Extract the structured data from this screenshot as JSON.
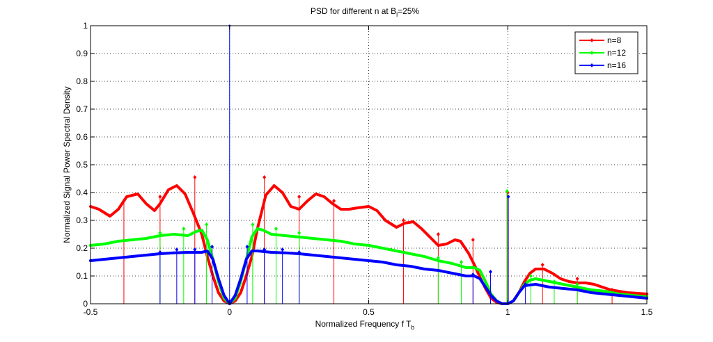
{
  "chart_data": {
    "type": "line",
    "title_main": "PSD for different n at B",
    "title_sub": "l",
    "title_end": "=25%",
    "xlabel_main": "Normalized Frequency f T",
    "xlabel_sub": "b",
    "ylabel": "Normalized Signal Power Spectral Density",
    "xlim": [
      -0.5,
      1.5
    ],
    "ylim": [
      0,
      1
    ],
    "xticks": [
      "-0.5",
      "0",
      "0.5",
      "1",
      "1.5"
    ],
    "yticks": [
      "0",
      "0.1",
      "0.2",
      "0.3",
      "0.4",
      "0.5",
      "0.6",
      "0.7",
      "0.8",
      "0.9",
      "1"
    ],
    "grid": true,
    "legend_position": "top-right",
    "series": [
      {
        "name": "n=8",
        "color": "#ff0000",
        "x": [
          -0.5,
          -0.47,
          -0.43,
          -0.4,
          -0.37,
          -0.33,
          -0.3,
          -0.27,
          -0.25,
          -0.22,
          -0.19,
          -0.16,
          -0.13,
          -0.1,
          -0.08,
          -0.06,
          -0.04,
          -0.02,
          0,
          0.02,
          0.04,
          0.06,
          0.08,
          0.1,
          0.13,
          0.16,
          0.19,
          0.22,
          0.25,
          0.28,
          0.31,
          0.34,
          0.37,
          0.4,
          0.43,
          0.46,
          0.5,
          0.53,
          0.56,
          0.6,
          0.63,
          0.66,
          0.69,
          0.72,
          0.75,
          0.78,
          0.81,
          0.83,
          0.86,
          0.88,
          0.9,
          0.92,
          0.94,
          0.96,
          0.98,
          1,
          1.02,
          1.04,
          1.06,
          1.08,
          1.1,
          1.13,
          1.16,
          1.19,
          1.22,
          1.25,
          1.28,
          1.31,
          1.34,
          1.37,
          1.4,
          1.43,
          1.46,
          1.5
        ],
        "y": [
          0.35,
          0.34,
          0.315,
          0.34,
          0.385,
          0.395,
          0.36,
          0.335,
          0.36,
          0.41,
          0.425,
          0.395,
          0.325,
          0.25,
          0.17,
          0.1,
          0.04,
          0.01,
          0,
          0.01,
          0.04,
          0.1,
          0.17,
          0.27,
          0.39,
          0.425,
          0.4,
          0.35,
          0.34,
          0.37,
          0.395,
          0.385,
          0.36,
          0.34,
          0.34,
          0.345,
          0.35,
          0.335,
          0.3,
          0.275,
          0.29,
          0.295,
          0.27,
          0.24,
          0.21,
          0.215,
          0.23,
          0.225,
          0.18,
          0.14,
          0.095,
          0.055,
          0.02,
          0.005,
          0,
          0,
          0.01,
          0.04,
          0.08,
          0.11,
          0.125,
          0.125,
          0.11,
          0.09,
          0.08,
          0.075,
          0.075,
          0.07,
          0.06,
          0.05,
          0.045,
          0.04,
          0.038,
          0.035
        ],
        "markers": [
          [
            -0.38,
            0.37
          ],
          [
            -0.25,
            0.385
          ],
          [
            -0.125,
            0.455
          ],
          [
            0.125,
            0.455
          ],
          [
            0.25,
            0.385
          ],
          [
            0.375,
            0.37
          ],
          [
            0.625,
            0.3
          ],
          [
            0.75,
            0.25
          ],
          [
            0.875,
            0.23
          ],
          [
            1.0,
            0.4
          ],
          [
            1.125,
            0.14
          ],
          [
            1.25,
            0.09
          ],
          [
            1.375,
            0.05
          ],
          [
            1.5,
            0.035
          ]
        ]
      },
      {
        "name": "n=12",
        "color": "#00ff00",
        "x": [
          -0.5,
          -0.45,
          -0.4,
          -0.35,
          -0.3,
          -0.25,
          -0.2,
          -0.15,
          -0.12,
          -0.1,
          -0.08,
          -0.06,
          -0.04,
          -0.02,
          0,
          0.02,
          0.04,
          0.06,
          0.08,
          0.1,
          0.12,
          0.15,
          0.2,
          0.25,
          0.3,
          0.35,
          0.4,
          0.45,
          0.5,
          0.55,
          0.6,
          0.65,
          0.7,
          0.75,
          0.8,
          0.85,
          0.88,
          0.9,
          0.92,
          0.94,
          0.96,
          0.98,
          1,
          1.02,
          1.04,
          1.06,
          1.08,
          1.1,
          1.15,
          1.2,
          1.25,
          1.3,
          1.35,
          1.4,
          1.45,
          1.5
        ],
        "y": [
          0.21,
          0.215,
          0.225,
          0.23,
          0.235,
          0.245,
          0.25,
          0.245,
          0.26,
          0.265,
          0.23,
          0.16,
          0.08,
          0.02,
          0,
          0.02,
          0.08,
          0.16,
          0.24,
          0.27,
          0.265,
          0.25,
          0.245,
          0.24,
          0.235,
          0.23,
          0.225,
          0.215,
          0.21,
          0.2,
          0.19,
          0.18,
          0.17,
          0.155,
          0.145,
          0.13,
          0.13,
          0.12,
          0.08,
          0.035,
          0.01,
          0,
          0,
          0.01,
          0.04,
          0.07,
          0.085,
          0.09,
          0.08,
          0.07,
          0.06,
          0.05,
          0.045,
          0.035,
          0.03,
          0.025
        ],
        "markers": [
          [
            -0.25,
            0.255
          ],
          [
            -0.165,
            0.27
          ],
          [
            -0.083,
            0.285
          ],
          [
            0.083,
            0.285
          ],
          [
            0.167,
            0.27
          ],
          [
            0.25,
            0.255
          ],
          [
            0.75,
            0.165
          ],
          [
            0.833,
            0.15
          ],
          [
            0.997,
            0.405
          ],
          [
            1.083,
            0.1
          ],
          [
            1.167,
            0.08
          ],
          [
            1.25,
            0.07
          ]
        ]
      },
      {
        "name": "n=16",
        "color": "#0000ff",
        "x": [
          -0.5,
          -0.45,
          -0.4,
          -0.35,
          -0.3,
          -0.25,
          -0.2,
          -0.15,
          -0.1,
          -0.08,
          -0.06,
          -0.04,
          -0.02,
          0,
          0.02,
          0.04,
          0.06,
          0.08,
          0.1,
          0.15,
          0.2,
          0.25,
          0.3,
          0.35,
          0.4,
          0.45,
          0.5,
          0.55,
          0.6,
          0.65,
          0.7,
          0.75,
          0.8,
          0.85,
          0.88,
          0.9,
          0.92,
          0.94,
          0.96,
          0.98,
          1,
          1.02,
          1.04,
          1.06,
          1.1,
          1.15,
          1.2,
          1.25,
          1.3,
          1.35,
          1.4,
          1.45,
          1.5
        ],
        "y": [
          0.155,
          0.16,
          0.165,
          0.17,
          0.175,
          0.18,
          0.183,
          0.185,
          0.185,
          0.19,
          0.16,
          0.09,
          0.03,
          0,
          0.03,
          0.09,
          0.16,
          0.19,
          0.19,
          0.185,
          0.183,
          0.18,
          0.175,
          0.17,
          0.165,
          0.16,
          0.155,
          0.15,
          0.14,
          0.135,
          0.125,
          0.12,
          0.11,
          0.1,
          0.1,
          0.09,
          0.06,
          0.03,
          0.01,
          0,
          0,
          0.01,
          0.04,
          0.065,
          0.07,
          0.06,
          0.055,
          0.05,
          0.04,
          0.035,
          0.03,
          0.025,
          0.02
        ],
        "markers": [
          [
            -0.25,
            0.185
          ],
          [
            -0.19,
            0.195
          ],
          [
            -0.125,
            0.195
          ],
          [
            -0.063,
            0.205
          ],
          [
            0.063,
            0.205
          ],
          [
            0.125,
            0.195
          ],
          [
            0.19,
            0.195
          ],
          [
            0.25,
            0.185
          ],
          [
            0.875,
            0.105
          ],
          [
            0.938,
            0.115
          ],
          [
            1.002,
            0.385
          ],
          [
            1.063,
            0.07
          ]
        ]
      }
    ],
    "impulse": {
      "x": 0,
      "y": 1,
      "color": "#0000ff"
    }
  }
}
